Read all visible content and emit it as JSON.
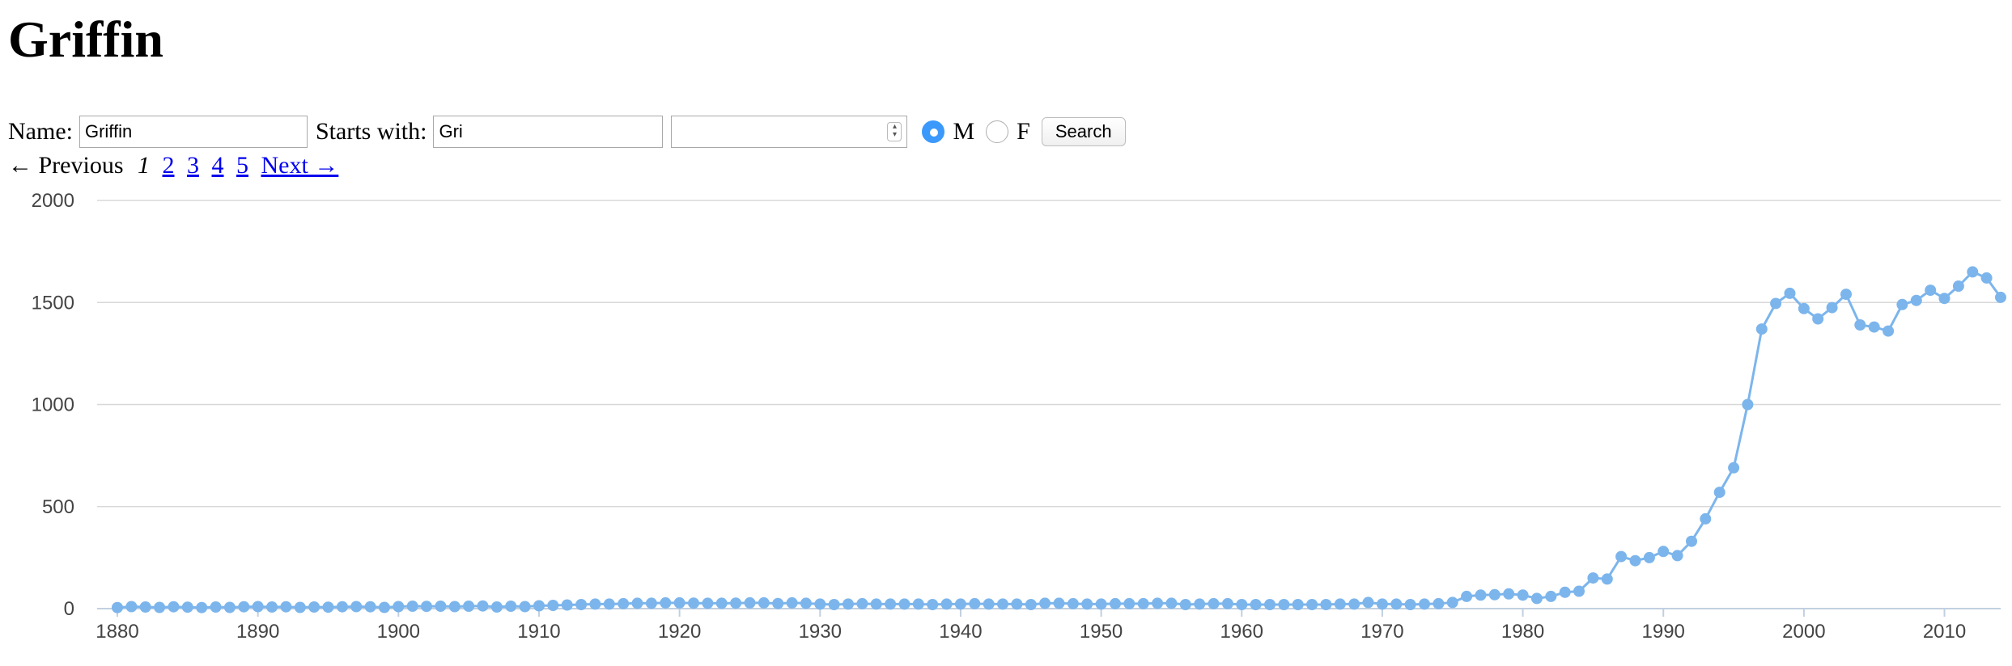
{
  "page": {
    "title": "Griffin"
  },
  "form": {
    "name_label": "Name:",
    "name_value": "Griffin",
    "starts_label": "Starts with:",
    "starts_value": "Gri",
    "number_value": "",
    "gender_m_label": "M",
    "gender_f_label": "F",
    "gender_selected": "M",
    "search_label": "Search"
  },
  "pager": {
    "prev_label": "← Previous",
    "current": "1",
    "pages": [
      "2",
      "3",
      "4",
      "5"
    ],
    "next_label": "Next →"
  },
  "colors": {
    "series": "#7cb5ec",
    "grid": "#d8d8d8",
    "radio": "#3b99fc",
    "link": "#0000ee"
  },
  "chart_data": {
    "type": "line",
    "title": "",
    "xlabel": "",
    "ylabel": "",
    "ylim": [
      0,
      2000
    ],
    "xlim": [
      1880,
      2014
    ],
    "y_ticks": [
      0,
      500,
      1000,
      1500,
      2000
    ],
    "x_ticks": [
      1880,
      1890,
      1900,
      1910,
      1920,
      1930,
      1940,
      1950,
      1960,
      1970,
      1980,
      1990,
      2000,
      2010
    ],
    "grid": true,
    "legend": "none",
    "x": [
      1880,
      1881,
      1882,
      1883,
      1884,
      1885,
      1886,
      1887,
      1888,
      1889,
      1890,
      1891,
      1892,
      1893,
      1894,
      1895,
      1896,
      1897,
      1898,
      1899,
      1900,
      1901,
      1902,
      1903,
      1904,
      1905,
      1906,
      1907,
      1908,
      1909,
      1910,
      1911,
      1912,
      1913,
      1914,
      1915,
      1916,
      1917,
      1918,
      1919,
      1920,
      1921,
      1922,
      1923,
      1924,
      1925,
      1926,
      1927,
      1928,
      1929,
      1930,
      1931,
      1932,
      1933,
      1934,
      1935,
      1936,
      1937,
      1938,
      1939,
      1940,
      1941,
      1942,
      1943,
      1944,
      1945,
      1946,
      1947,
      1948,
      1949,
      1950,
      1951,
      1952,
      1953,
      1954,
      1955,
      1956,
      1957,
      1958,
      1959,
      1960,
      1961,
      1962,
      1963,
      1964,
      1965,
      1966,
      1967,
      1968,
      1969,
      1970,
      1971,
      1972,
      1973,
      1974,
      1975,
      1976,
      1977,
      1978,
      1979,
      1980,
      1981,
      1982,
      1983,
      1984,
      1985,
      1986,
      1987,
      1988,
      1989,
      1990,
      1991,
      1992,
      1993,
      1994,
      1995,
      1996,
      1997,
      1998,
      1999,
      2000,
      2001,
      2002,
      2003,
      2004,
      2005,
      2006,
      2007,
      2008,
      2009,
      2010,
      2011,
      2012,
      2013,
      2014
    ],
    "series": [
      {
        "values": [
          5,
          10,
          8,
          6,
          9,
          7,
          5,
          8,
          6,
          9,
          10,
          8,
          9,
          6,
          8,
          7,
          9,
          10,
          9,
          6,
          10,
          12,
          11,
          12,
          10,
          12,
          13,
          8,
          12,
          10,
          14,
          16,
          18,
          20,
          22,
          22,
          24,
          26,
          26,
          28,
          28,
          27,
          26,
          26,
          27,
          28,
          28,
          25,
          28,
          26,
          22,
          20,
          22,
          24,
          22,
          22,
          22,
          22,
          20,
          22,
          22,
          24,
          22,
          22,
          22,
          20,
          26,
          26,
          24,
          22,
          22,
          24,
          24,
          24,
          26,
          26,
          20,
          22,
          24,
          24,
          20,
          20,
          20,
          20,
          20,
          20,
          20,
          22,
          22,
          30,
          22,
          22,
          20,
          22,
          24,
          30,
          60,
          66,
          68,
          72,
          66,
          50,
          60,
          80,
          85,
          150,
          145,
          255,
          235,
          250,
          280,
          260,
          330,
          440,
          570,
          690,
          1000,
          1370,
          1495,
          1545,
          1470,
          1420,
          1475,
          1540,
          1390,
          1380,
          1360,
          1490,
          1510,
          1560,
          1520,
          1580,
          1650,
          1620,
          1525
        ]
      }
    ]
  }
}
